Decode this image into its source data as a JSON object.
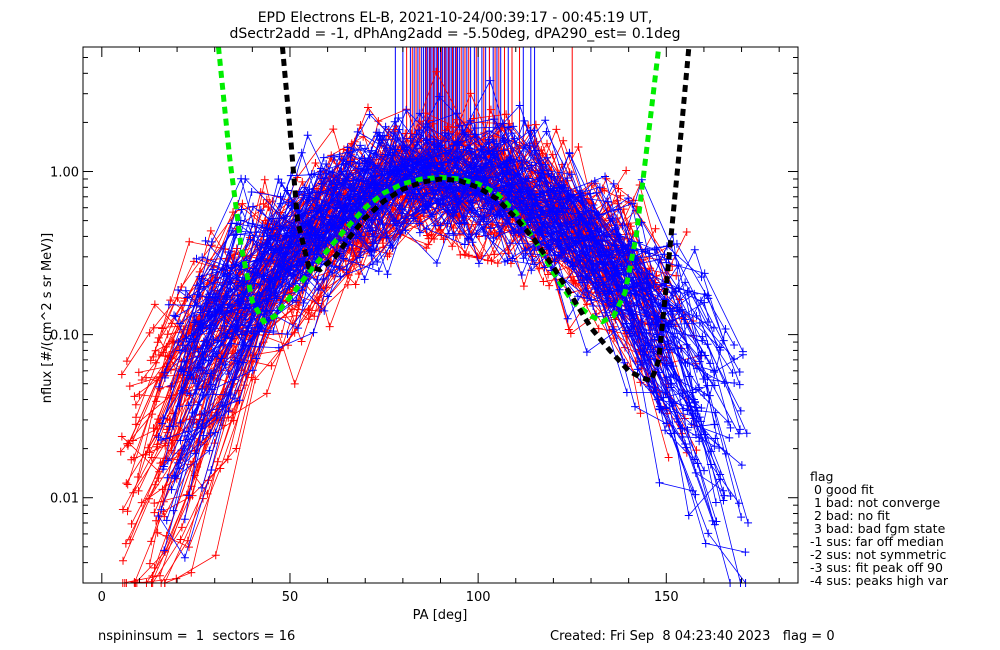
{
  "chart_data": {
    "type": "scatter",
    "title_line1": "EPD Electrons EL-B, 2021-10-24/00:39:17 - 00:45:19 UT,",
    "title_line2": "dSectr2add = -1, dPhAng2add = -5.50deg, dPA290_est=   0.1deg",
    "xlabel": "PA [deg]",
    "ylabel": "nflux [#/(cm^2 s sr MeV)]",
    "xlim": [
      -5,
      185
    ],
    "ylim": [
      0.003,
      5.8
    ],
    "yscale": "log",
    "x_ticks": [
      0,
      50,
      100,
      150
    ],
    "x_tick_labels": [
      "0",
      "50",
      "100",
      "150"
    ],
    "y_ticks": [
      0.01,
      0.1,
      1.0
    ],
    "y_tick_labels": [
      "0.01",
      "0.10",
      "1.00"
    ],
    "grid": false,
    "series": [
      {
        "color": "#ff0000",
        "marker": "+",
        "pa_range": [
          5,
          160
        ],
        "peak_pa": 92,
        "peak_value": 0.9,
        "count": 90
      },
      {
        "color": "#0000ff",
        "marker": "+",
        "pa_range": [
          15,
          175
        ],
        "peak_pa": 90,
        "peak_value": 0.95,
        "count": 90
      }
    ],
    "fit_curves": [
      {
        "color": "#00ee00",
        "style": "dashed",
        "x": [
          31,
          34,
          37,
          40,
          43,
          46,
          50,
          55,
          60,
          65,
          70,
          75,
          80,
          85,
          90,
          95,
          100,
          105,
          110,
          115,
          120,
          125,
          130,
          133,
          136,
          139,
          142,
          145,
          148
        ],
        "y": [
          5.8,
          1.2,
          0.35,
          0.16,
          0.12,
          0.13,
          0.17,
          0.24,
          0.33,
          0.45,
          0.6,
          0.74,
          0.84,
          0.9,
          0.92,
          0.9,
          0.84,
          0.73,
          0.56,
          0.38,
          0.24,
          0.16,
          0.13,
          0.12,
          0.13,
          0.18,
          0.4,
          1.5,
          5.8
        ]
      },
      {
        "color": "#000000",
        "style": "dashed",
        "x": [
          48,
          50,
          52,
          55,
          58,
          62,
          66,
          70,
          75,
          80,
          85,
          90,
          95,
          100,
          105,
          110,
          115,
          120,
          125,
          130,
          135,
          140,
          143,
          146,
          148,
          150,
          152,
          154,
          156
        ],
        "y": [
          5.8,
          1.8,
          0.5,
          0.26,
          0.25,
          0.3,
          0.4,
          0.52,
          0.66,
          0.78,
          0.86,
          0.9,
          0.88,
          0.8,
          0.68,
          0.52,
          0.38,
          0.26,
          0.17,
          0.11,
          0.08,
          0.06,
          0.055,
          0.052,
          0.07,
          0.2,
          0.6,
          1.8,
          5.8
        ]
      }
    ],
    "pa_markers": [
      {
        "color": "#0000ff",
        "values": [
          78,
          80,
          82,
          83,
          84,
          85,
          85.5,
          86,
          86.5,
          87,
          87.5,
          88,
          88.5,
          89,
          89.5,
          90,
          90.5,
          91,
          91.5,
          92,
          92.5,
          93,
          93.5,
          94,
          94.5,
          95,
          96,
          97,
          98,
          99,
          100,
          101,
          102,
          103,
          104,
          105,
          106,
          108,
          112,
          114,
          115
        ]
      },
      {
        "color": "#ff0000",
        "values": [
          81,
          82.5,
          83.5,
          84.5,
          86.2,
          87.2,
          88.2,
          89.2,
          90.2,
          91.2,
          92.2,
          93.2,
          94.2,
          95.5,
          96.5,
          97.5,
          99.5,
          101.5,
          103,
          104.5,
          105.5,
          107,
          109,
          111,
          125
        ]
      }
    ],
    "marker_band": [
      1.18,
      5.8
    ],
    "legend": {
      "position": "right",
      "title": "flag",
      "entries": [
        " 0 good fit",
        " 1 bad: not converge",
        " 2 bad: no fit",
        " 3 bad: bad fgm state",
        "-1 sus: far off median",
        "-2 sus: not symmetric",
        "-3 sus: fit peak off 90",
        "-4 sus: peaks high var"
      ]
    }
  },
  "footer": {
    "left": "nspininsum =  1  sectors = 16",
    "right": "Created: Fri Sep  8 04:23:40 2023   flag = 0"
  },
  "colors": {
    "red_series": "#ff0000",
    "blue_series": "#0000ff",
    "fit_green": "#00ee00",
    "fit_black": "#000000",
    "axes": "#000000"
  }
}
